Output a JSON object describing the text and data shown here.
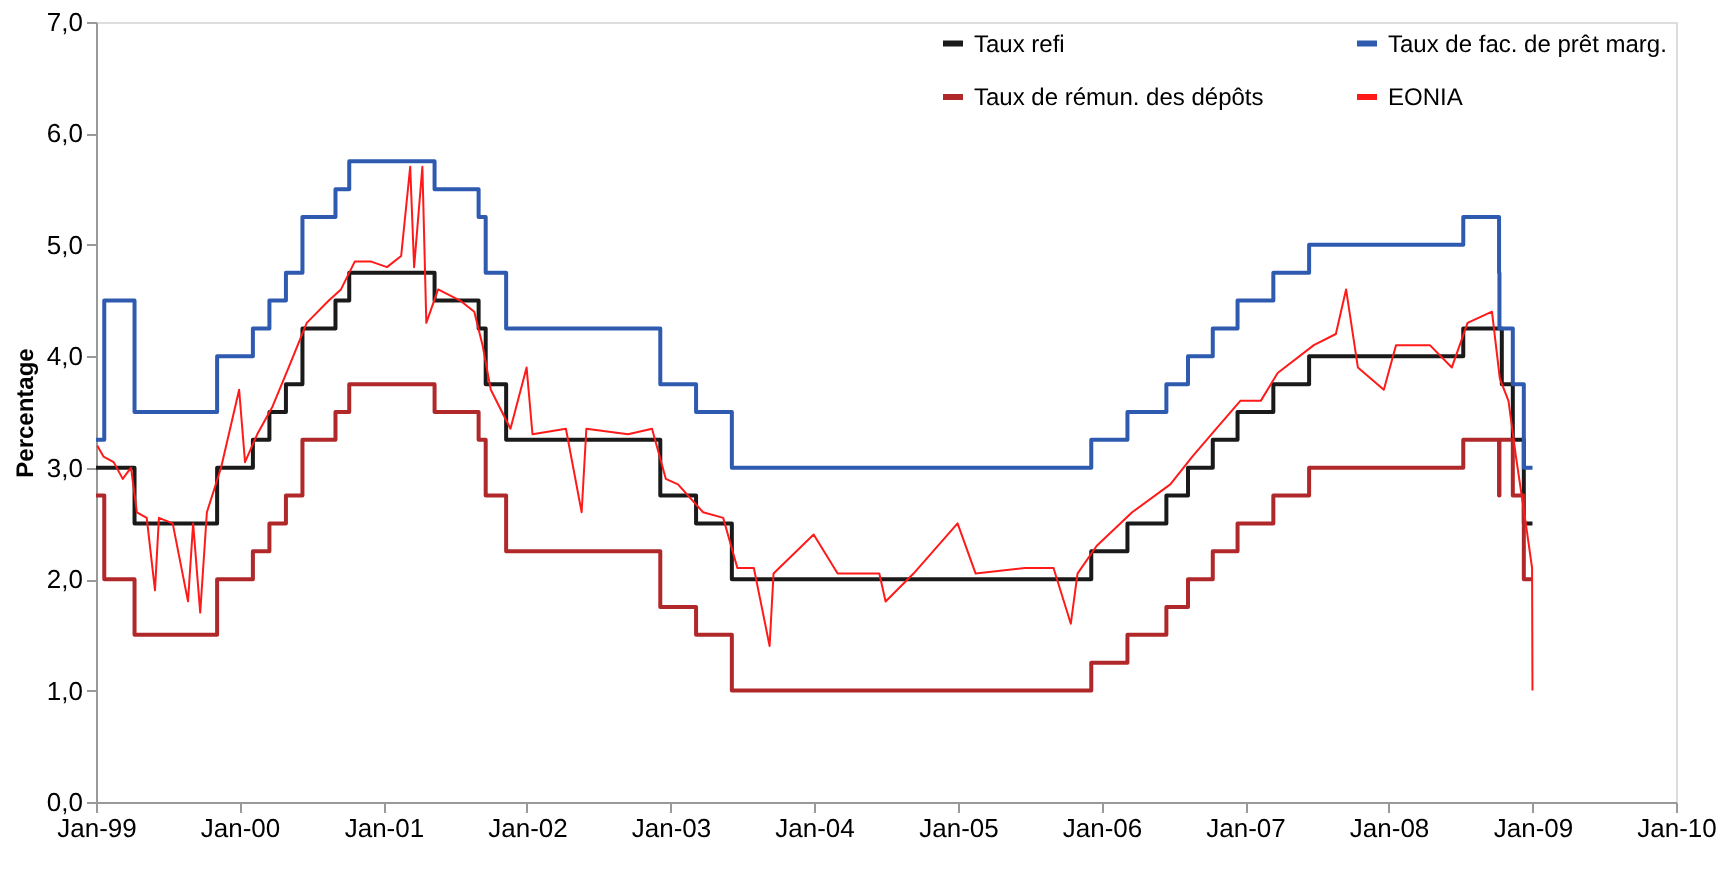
{
  "chart_data": {
    "type": "line",
    "ylabel": "Percentage",
    "xlim": [
      "1999-01",
      "2010-01"
    ],
    "ylim": [
      0,
      7
    ],
    "xticks": [
      {
        "value": "1999-01",
        "label": "Jan-99"
      },
      {
        "value": "2000-01",
        "label": "Jan-00"
      },
      {
        "value": "2001-01",
        "label": "Jan-01"
      },
      {
        "value": "2002-01",
        "label": "Jan-02"
      },
      {
        "value": "2003-01",
        "label": "Jan-03"
      },
      {
        "value": "2004-01",
        "label": "Jan-04"
      },
      {
        "value": "2005-01",
        "label": "Jan-05"
      },
      {
        "value": "2006-01",
        "label": "Jan-06"
      },
      {
        "value": "2007-01",
        "label": "Jan-07"
      },
      {
        "value": "2008-01",
        "label": "Jan-08"
      },
      {
        "value": "2009-01",
        "label": "Jan-09"
      },
      {
        "value": "2010-01",
        "label": "Jan-10"
      }
    ],
    "yticks": [
      {
        "value": 0,
        "label": "0,0"
      },
      {
        "value": 1,
        "label": "1,0"
      },
      {
        "value": 2,
        "label": "2,0"
      },
      {
        "value": 3,
        "label": "3,0"
      },
      {
        "value": 4,
        "label": "4,0"
      },
      {
        "value": 5,
        "label": "5,0"
      },
      {
        "value": 6,
        "label": "6,0"
      },
      {
        "value": 7,
        "label": "7,0"
      }
    ],
    "grid": false,
    "legend": "top right",
    "marker": "none",
    "line_style": "solid",
    "series": [
      {
        "name": "Taux refi",
        "type": "step",
        "color": "#1a1a1a",
        "x": [
          "1999-01-01",
          "1999-04-09",
          "1999-11-05",
          "2000-02-04",
          "2000-03-17",
          "2000-04-28",
          "2000-06-09",
          "2000-09-01",
          "2000-10-06",
          "2001-05-11",
          "2001-08-31",
          "2001-09-18",
          "2001-11-09",
          "2002-12-06",
          "2003-03-07",
          "2003-06-06",
          "2005-12-06",
          "2006-03-08",
          "2006-06-15",
          "2006-08-09",
          "2006-10-11",
          "2006-12-13",
          "2007-03-14",
          "2007-06-13",
          "2008-07-09",
          "2008-10-15",
          "2008-11-12",
          "2008-12-10",
          "2009-01-01"
        ],
        "values": [
          3.0,
          2.5,
          3.0,
          3.25,
          3.5,
          3.75,
          4.25,
          4.5,
          4.75,
          4.5,
          4.25,
          3.75,
          3.25,
          2.75,
          2.5,
          2.0,
          2.25,
          2.5,
          2.75,
          3.0,
          3.25,
          3.5,
          3.75,
          4.0,
          4.25,
          3.75,
          3.25,
          2.5,
          2.5
        ]
      },
      {
        "name": "Taux de fac. de prêt marg.",
        "type": "step",
        "color": "#2e5bb0",
        "x": [
          "1999-01-01",
          "1999-01-22",
          "1999-04-09",
          "1999-11-05",
          "2000-02-04",
          "2000-03-17",
          "2000-04-28",
          "2000-06-09",
          "2000-09-01",
          "2000-10-06",
          "2001-05-11",
          "2001-08-31",
          "2001-09-18",
          "2001-11-09",
          "2002-12-06",
          "2003-03-07",
          "2003-06-06",
          "2005-12-06",
          "2006-03-08",
          "2006-06-15",
          "2006-08-09",
          "2006-10-11",
          "2006-12-13",
          "2007-03-14",
          "2007-06-13",
          "2008-07-09",
          "2008-10-08",
          "2008-10-09",
          "2008-11-12",
          "2008-12-10",
          "2009-01-01"
        ],
        "values": [
          3.25,
          4.5,
          3.5,
          4.0,
          4.25,
          4.5,
          4.75,
          5.25,
          5.5,
          5.75,
          5.5,
          5.25,
          4.75,
          4.25,
          3.75,
          3.5,
          3.0,
          3.25,
          3.5,
          3.75,
          4.0,
          4.25,
          4.5,
          4.75,
          5.0,
          5.25,
          4.75,
          4.25,
          3.75,
          3.0,
          3.0
        ]
      },
      {
        "name": "Taux de rémun. des dépôts",
        "type": "step",
        "color": "#b0282a",
        "x": [
          "1999-01-01",
          "1999-01-22",
          "1999-04-09",
          "1999-11-05",
          "2000-02-04",
          "2000-03-17",
          "2000-04-28",
          "2000-06-09",
          "2000-09-01",
          "2000-10-06",
          "2001-05-11",
          "2001-08-31",
          "2001-09-18",
          "2001-11-09",
          "2002-12-06",
          "2003-03-07",
          "2003-06-06",
          "2005-12-06",
          "2006-03-08",
          "2006-06-15",
          "2006-08-09",
          "2006-10-11",
          "2006-12-13",
          "2007-03-14",
          "2007-06-13",
          "2008-07-09",
          "2008-10-08",
          "2008-10-09",
          "2008-11-12",
          "2008-12-10",
          "2009-01-01"
        ],
        "values": [
          2.75,
          2.0,
          1.5,
          2.0,
          2.25,
          2.5,
          2.75,
          3.25,
          3.5,
          3.75,
          3.5,
          3.25,
          2.75,
          2.25,
          1.75,
          1.5,
          1.0,
          1.25,
          1.5,
          1.75,
          2.0,
          2.25,
          2.5,
          2.75,
          3.0,
          3.25,
          2.75,
          3.25,
          2.75,
          2.0,
          2.0
        ]
      },
      {
        "name": "EONIA",
        "type": "line",
        "color": "#ff1a1a",
        "x": [
          "1999-01-04",
          "1999-01-20",
          "1999-02-15",
          "1999-03-10",
          "1999-03-31",
          "1999-04-15",
          "1999-05-10",
          "1999-05-31",
          "1999-06-10",
          "1999-07-15",
          "1999-08-23",
          "1999-09-05",
          "1999-09-23",
          "1999-10-10",
          "1999-11-15",
          "1999-12-31",
          "2000-01-15",
          "2000-02-15",
          "2000-03-25",
          "2000-05-05",
          "2000-06-20",
          "2000-08-15",
          "2000-09-15",
          "2000-10-20",
          "2000-12-01",
          "2001-01-10",
          "2001-02-15",
          "2001-03-10",
          "2001-03-20",
          "2001-04-10",
          "2001-04-20",
          "2001-05-20",
          "2001-07-15",
          "2001-08-20",
          "2001-09-10",
          "2001-10-01",
          "2001-11-20",
          "2001-12-31",
          "2002-01-15",
          "2002-04-10",
          "2002-05-20",
          "2002-06-01",
          "2002-09-15",
          "2002-11-15",
          "2002-12-20",
          "2003-01-20",
          "2003-03-25",
          "2003-05-15",
          "2003-06-20",
          "2003-08-01",
          "2003-09-10",
          "2003-09-20",
          "2003-12-31",
          "2004-03-01",
          "2004-06-15",
          "2004-07-01",
          "2004-09-10",
          "2004-12-31",
          "2005-02-15",
          "2005-06-20",
          "2005-09-01",
          "2005-10-15",
          "2005-11-01",
          "2005-12-20",
          "2006-03-20",
          "2006-06-25",
          "2006-08-20",
          "2006-10-20",
          "2006-12-20",
          "2007-02-10",
          "2007-03-25",
          "2007-06-25",
          "2007-08-20",
          "2007-09-15",
          "2007-10-15",
          "2007-12-20",
          "2008-01-20",
          "2008-04-15",
          "2008-06-10",
          "2008-07-20",
          "2008-09-20",
          "2008-10-10",
          "2008-11-01",
          "2008-11-20",
          "2008-12-15",
          "2008-12-31",
          "2009-01-01"
        ],
        "values": [
          3.2,
          3.1,
          3.05,
          2.9,
          3.0,
          2.6,
          2.55,
          1.9,
          2.55,
          2.5,
          1.8,
          2.5,
          1.7,
          2.6,
          3.0,
          3.7,
          3.05,
          3.3,
          3.55,
          3.9,
          4.3,
          4.5,
          4.6,
          4.85,
          4.85,
          4.8,
          4.9,
          5.7,
          4.8,
          5.7,
          4.3,
          4.6,
          4.5,
          4.4,
          4.1,
          3.7,
          3.35,
          3.9,
          3.3,
          3.35,
          2.6,
          3.35,
          3.3,
          3.35,
          2.9,
          2.85,
          2.6,
          2.55,
          2.1,
          2.1,
          1.4,
          2.05,
          2.4,
          2.05,
          2.05,
          1.8,
          2.05,
          2.5,
          2.05,
          2.1,
          2.1,
          1.6,
          2.05,
          2.3,
          2.6,
          2.85,
          3.1,
          3.35,
          3.6,
          3.6,
          3.85,
          4.1,
          4.2,
          4.6,
          3.9,
          3.7,
          4.1,
          4.1,
          3.9,
          4.3,
          4.4,
          3.8,
          3.6,
          3.1,
          2.5,
          2.1,
          1.0
        ]
      }
    ]
  }
}
